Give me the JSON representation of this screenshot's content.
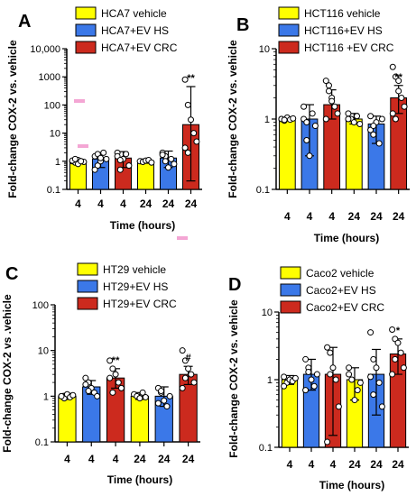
{
  "chart_data": [
    {
      "panel": "A",
      "type": "bar",
      "scale": "log",
      "ylim": [
        0.1,
        10000
      ],
      "ytick_labels": [
        "0.1",
        "1",
        "10",
        "100",
        "1000",
        "10,000"
      ],
      "ytick_values": [
        0.1,
        1,
        10,
        100,
        1000,
        10000
      ],
      "xlabel": "Time (hours)",
      "ylabel": "Fold-change COX-2 vs. vehicle",
      "legend": [
        "HCA7 vehicle",
        "HCA7+EV HS",
        "HCA7+EV CRC"
      ],
      "categories": [
        "4",
        "4",
        "4",
        "24",
        "24",
        "24"
      ],
      "groups": [
        "HCA7 vehicle",
        "HCA7+EV HS",
        "HCA7+EV CRC",
        "HCA7 vehicle",
        "HCA7+EV HS",
        "HCA7+EV CRC"
      ],
      "values": [
        1.0,
        1.2,
        1.3,
        1.0,
        1.3,
        20
      ],
      "error_high": [
        1.2,
        2.0,
        2.2,
        1.2,
        2.3,
        450
      ],
      "error_low": [
        0.85,
        0.6,
        0.6,
        0.85,
        0.6,
        0.2
      ],
      "points": [
        [
          1.0,
          0.9,
          1.1,
          1.0,
          0.95,
          1.05,
          1.2,
          0.8,
          1.0
        ],
        [
          1.5,
          0.7,
          1.0,
          2.0,
          1.2,
          0.5,
          1.8,
          1.3
        ],
        [
          2.0,
          0.5,
          1.2,
          1.8,
          0.7,
          1.5,
          1.1
        ],
        [
          1.0,
          0.95,
          1.05,
          1.1,
          0.9
        ],
        [
          2.0,
          1.5,
          0.6,
          1.2,
          0.8,
          1.7,
          1.0
        ],
        [
          800,
          100,
          30,
          10,
          5,
          3,
          2
        ]
      ],
      "significance": [
        "",
        "",
        "",
        "",
        "",
        "**"
      ]
    },
    {
      "panel": "B",
      "type": "bar",
      "scale": "log",
      "ylim": [
        0.1,
        10
      ],
      "ytick_labels": [
        "0.1",
        "1",
        "10"
      ],
      "ytick_values": [
        0.1,
        1,
        10
      ],
      "xlabel": "Time (hours)",
      "ylabel": "Fold-change COX-2 vs. vehicle",
      "legend": [
        "HCT116 vehicle",
        "HCT116+EV HS",
        "HCT116 +EV CRC"
      ],
      "categories": [
        "4",
        "4",
        "4",
        "24",
        "24",
        "24"
      ],
      "groups": [
        "HCT116 vehicle",
        "HCT116+EV HS",
        "HCT116 +EV CRC",
        "HCT116 vehicle",
        "HCT116+EV HS",
        "HCT116 +EV CRC"
      ],
      "values": [
        1.0,
        1.0,
        1.6,
        1.0,
        0.85,
        2.0
      ],
      "error_high": [
        1.05,
        1.6,
        2.6,
        1.2,
        1.1,
        3.0
      ],
      "error_low": [
        0.95,
        0.3,
        1.0,
        0.85,
        0.45,
        1.2
      ],
      "points": [
        [
          1.0,
          0.95,
          1.05,
          0.98,
          1.02,
          1.0,
          0.97
        ],
        [
          1.5,
          0.5,
          0.3,
          1.2,
          0.8,
          1.0,
          0.9
        ],
        [
          3.5,
          3.0,
          2.0,
          1.5,
          1.2,
          1.0,
          2.5,
          1.8
        ],
        [
          1.2,
          1.0,
          0.9,
          1.1,
          0.85,
          1.0
        ],
        [
          1.1,
          0.6,
          0.9,
          0.45,
          1.0,
          0.7,
          0.8
        ],
        [
          5.5,
          4.0,
          3.5,
          2.0,
          1.5,
          1.2,
          1.0,
          2.5
        ]
      ],
      "significance": [
        "",
        "",
        "",
        "",
        "",
        "**"
      ]
    },
    {
      "panel": "C",
      "type": "bar",
      "scale": "log",
      "ylim": [
        0.1,
        100
      ],
      "ytick_labels": [
        "0.1",
        "1",
        "10",
        "100"
      ],
      "ytick_values": [
        0.1,
        1,
        10,
        100
      ],
      "xlabel": "Time (hours)",
      "ylabel": "Fold-change COX-2 vs .vehicle",
      "legend": [
        "HT29 vehicle",
        "HT29+EV HS",
        "HT29+EV CRC"
      ],
      "categories": [
        "4",
        "4",
        "4",
        "24",
        "24",
        "24"
      ],
      "groups": [
        "HT29 vehicle",
        "HT29+EV HS",
        "HT29+EV CRC",
        "HT29 vehicle",
        "HT29+EV HS",
        "HT29+EV CRC"
      ],
      "values": [
        1.0,
        1.6,
        2.5,
        1.0,
        1.0,
        3.0
      ],
      "error_high": [
        1.15,
        2.2,
        4.0,
        1.2,
        1.6,
        4.5
      ],
      "error_low": [
        0.85,
        1.1,
        1.5,
        0.85,
        0.6,
        1.8
      ],
      "points": [
        [
          1.0,
          0.9,
          1.1,
          0.95,
          1.05,
          1.0
        ],
        [
          2.5,
          2.0,
          1.5,
          1.2,
          1.0,
          1.8,
          1.3
        ],
        [
          6.0,
          4.0,
          3.0,
          2.0,
          1.5,
          2.5,
          1.2
        ],
        [
          1.1,
          1.0,
          0.9,
          1.2,
          0.95
        ],
        [
          1.5,
          1.2,
          0.8,
          0.6,
          1.0,
          0.7,
          1.3
        ],
        [
          10,
          6.0,
          4.0,
          3.0,
          2.0,
          1.5,
          2.5
        ]
      ],
      "significance": [
        "",
        "",
        "**",
        "",
        "",
        "#"
      ]
    },
    {
      "panel": "D",
      "type": "bar",
      "scale": "log",
      "ylim": [
        0.1,
        10
      ],
      "ytick_labels": [
        "0.1",
        "1",
        "10"
      ],
      "ytick_values": [
        0.1,
        1,
        10
      ],
      "xlabel": "Time (hours)",
      "ylabel": "Fold-change COX-2  vs. vehicle",
      "legend": [
        "Caco2 vehicle",
        "Caco2+EV HS",
        "Caco2+EV CRC"
      ],
      "categories": [
        "4",
        "4",
        "4",
        "24",
        "24",
        "24"
      ],
      "groups": [
        "Caco2 vehicle",
        "Caco2+EV HS",
        "Caco2+EV CRC",
        "Caco2 vehicle",
        "Caco2+EV HS",
        "Caco2+EV CRC"
      ],
      "values": [
        1.0,
        1.2,
        1.2,
        1.0,
        1.2,
        2.4
      ],
      "error_high": [
        1.15,
        2.0,
        3.0,
        1.5,
        2.8,
        4.0
      ],
      "error_low": [
        0.85,
        0.7,
        0.15,
        0.5,
        0.3,
        1.2
      ],
      "points": [
        [
          1.1,
          0.9,
          1.0,
          0.95,
          1.05,
          0.8
        ],
        [
          2.0,
          1.5,
          1.0,
          0.8,
          1.2,
          0.7,
          1.3
        ],
        [
          3.0,
          2.5,
          1.5,
          1.0,
          0.4,
          0.12,
          1.2
        ],
        [
          1.2,
          1.0,
          0.5,
          0.7,
          0.9,
          1.5
        ],
        [
          5.0,
          2.0,
          1.5,
          0.9,
          0.4,
          1.1,
          0.6
        ],
        [
          5.5,
          4.0,
          3.5,
          2.5,
          1.5,
          1.2,
          2.0
        ]
      ],
      "significance": [
        "",
        "",
        "",
        "",
        "",
        "*"
      ]
    }
  ],
  "colors": {
    "vehicle": "#ffff00",
    "ev_hs": "#3b78e8",
    "ev_crc": "#cc2a1e",
    "point_fill": "#ffffff",
    "axis": "#000000",
    "errorbar": "#000000",
    "pink_artifact": "#f4a6d4"
  }
}
